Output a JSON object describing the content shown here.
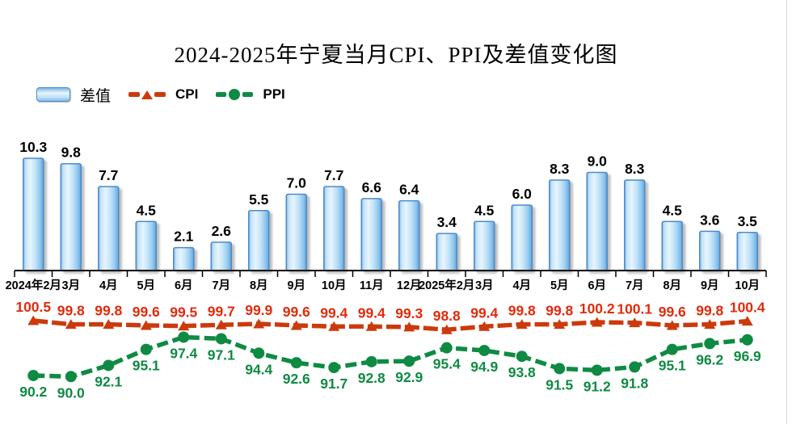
{
  "title": "2024-2025年宁夏当月CPI、PPI及差值变化图",
  "legend": {
    "bar_label": "差值",
    "cpi_label": "CPI",
    "ppi_label": "PPI"
  },
  "colors": {
    "bar_border": "#4E8AC8",
    "bar_light": "#E7F5FE",
    "bar_mid": "#BFE0F7",
    "bar_dark": "#5FA6DB",
    "cpi_line": "#CC3A0C",
    "cpi_text": "#E02B0B",
    "ppi_line": "#0F8A43",
    "ppi_text": "#0F8A43",
    "axis": "#000000",
    "value_label": "#000000"
  },
  "chart_data": {
    "type": "bar",
    "subtype": "combo-bar-plus-two-lines",
    "title": "2024-2025年宁夏当月CPI、PPI及差值变化图",
    "categories": [
      "2024年2月",
      "3月",
      "4月",
      "5月",
      "6月",
      "7月",
      "8月",
      "9月",
      "10月",
      "11月",
      "12月",
      "2025年2月",
      "3月",
      "4月",
      "5月",
      "6月",
      "7月",
      "8月",
      "9月",
      "10月"
    ],
    "series": [
      {
        "name": "差值",
        "type": "bar",
        "values": [
          10.3,
          9.8,
          7.7,
          4.5,
          2.1,
          2.6,
          5.5,
          7.0,
          7.7,
          6.6,
          6.4,
          3.4,
          4.5,
          6.0,
          8.3,
          9.0,
          8.3,
          4.5,
          3.6,
          3.5
        ]
      },
      {
        "name": "CPI",
        "type": "line",
        "marker": "triangle",
        "values": [
          100.5,
          99.8,
          99.8,
          99.6,
          99.5,
          99.7,
          99.9,
          99.6,
          99.4,
          99.4,
          99.3,
          98.8,
          99.4,
          99.8,
          99.8,
          100.2,
          100.1,
          99.6,
          99.8,
          100.4
        ]
      },
      {
        "name": "PPI",
        "type": "line",
        "marker": "circle",
        "values": [
          90.2,
          90.0,
          92.1,
          95.1,
          97.4,
          97.1,
          94.4,
          92.6,
          91.7,
          92.8,
          92.9,
          95.4,
          94.9,
          93.8,
          91.5,
          91.2,
          91.8,
          95.1,
          96.2,
          96.9
        ]
      }
    ],
    "xlabel": "",
    "ylabel": "",
    "grid": false,
    "legend_position": "top-left",
    "value_labels": true
  }
}
